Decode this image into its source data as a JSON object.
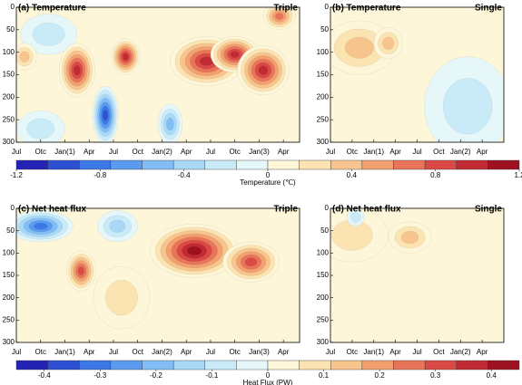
{
  "chart_data": [
    {
      "type": "contour",
      "title": "(a) Temperature",
      "label": "Triple",
      "xlim": [
        0,
        35
      ],
      "xticks": [
        {
          "value": 0,
          "label": "Jul"
        },
        {
          "value": 3,
          "label": "Otc"
        },
        {
          "value": 6,
          "label": "Jan(1)"
        },
        {
          "value": 9,
          "label": "Apr"
        },
        {
          "value": 12,
          "label": "Jul"
        },
        {
          "value": 15,
          "label": "Oct"
        },
        {
          "value": 18,
          "label": "Jan(2)"
        },
        {
          "value": 21,
          "label": "Apr"
        },
        {
          "value": 24,
          "label": "Jul"
        },
        {
          "value": 27,
          "label": "Otc"
        },
        {
          "value": 30,
          "label": "Jan(3)"
        },
        {
          "value": 33,
          "label": "Apr"
        }
      ],
      "ylim": [
        0,
        300
      ],
      "yticks": [
        0,
        50,
        100,
        150,
        200,
        250,
        300
      ],
      "y_inverted": true,
      "anomalies": [
        {
          "x": 4,
          "y": 60,
          "rx": 3.5,
          "ry": 45,
          "value": -0.2
        },
        {
          "x": 3,
          "y": 270,
          "rx": 3,
          "ry": 40,
          "value": -0.3
        },
        {
          "x": 11,
          "y": 240,
          "rx": 1.6,
          "ry": 65,
          "value": -0.9
        },
        {
          "x": 19,
          "y": 260,
          "rx": 1.5,
          "ry": 45,
          "value": -0.5
        },
        {
          "x": 1,
          "y": 110,
          "rx": 1.5,
          "ry": 30,
          "value": 0.3
        },
        {
          "x": 7.5,
          "y": 140,
          "rx": 2.2,
          "ry": 60,
          "value": 1.0
        },
        {
          "x": 13.5,
          "y": 110,
          "rx": 1.8,
          "ry": 40,
          "value": 0.9
        },
        {
          "x": 23.5,
          "y": 120,
          "rx": 4.5,
          "ry": 55,
          "value": 1.0
        },
        {
          "x": 27,
          "y": 105,
          "rx": 3,
          "ry": 40,
          "value": 0.9
        },
        {
          "x": 30.5,
          "y": 140,
          "rx": 3.2,
          "ry": 55,
          "value": 1.0
        },
        {
          "x": 32.5,
          "y": 20,
          "rx": 2,
          "ry": 30,
          "value": 0.7
        }
      ]
    },
    {
      "type": "contour",
      "title": "(b) Temperature",
      "label": "Single",
      "xlim": [
        0,
        24
      ],
      "xticks": [
        {
          "value": 0,
          "label": "Jul"
        },
        {
          "value": 3,
          "label": "Otc"
        },
        {
          "value": 6,
          "label": "Jan(1)"
        },
        {
          "value": 9,
          "label": "Apr"
        },
        {
          "value": 12,
          "label": "Jul"
        },
        {
          "value": 15,
          "label": "Oct"
        },
        {
          "value": 18,
          "label": "Jan(2)"
        },
        {
          "value": 21,
          "label": "Apr"
        }
      ],
      "ylim": [
        0,
        300
      ],
      "yticks": [
        0,
        50,
        100,
        150,
        200,
        250,
        300
      ],
      "y_inverted": true,
      "anomalies": [
        {
          "x": 19,
          "y": 220,
          "rx": 6,
          "ry": 110,
          "value": -0.2
        },
        {
          "x": 4,
          "y": 90,
          "rx": 5,
          "ry": 60,
          "value": 0.3
        },
        {
          "x": 8,
          "y": 80,
          "rx": 2,
          "ry": 35,
          "value": 0.35
        }
      ]
    },
    {
      "type": "colorbar",
      "title": "Temperature (℃)",
      "lim": [
        -1.2,
        1.2
      ],
      "ticks": [
        -1.2,
        -0.8,
        -0.4,
        0,
        0.4,
        0.8,
        1.2
      ],
      "colors": [
        "#2323b4",
        "#2d4fd2",
        "#3c78e6",
        "#5a9bf0",
        "#82bef5",
        "#a9d8f7",
        "#c9ebf8",
        "#e6f7fa",
        "#fdf6d8",
        "#fbe3b2",
        "#f7c48e",
        "#f2a070",
        "#e8755a",
        "#d94a46",
        "#c02a32",
        "#9c1220"
      ]
    },
    {
      "type": "contour",
      "title": "(c) Net heat flux",
      "label": "Triple",
      "xlim": [
        0,
        35
      ],
      "xticks": [
        {
          "value": 0,
          "label": "Jul"
        },
        {
          "value": 3,
          "label": "Otc"
        },
        {
          "value": 6,
          "label": "Jan(1)"
        },
        {
          "value": 9,
          "label": "Apr"
        },
        {
          "value": 12,
          "label": "Jul"
        },
        {
          "value": 15,
          "label": "Oct"
        },
        {
          "value": 18,
          "label": "Jan(2)"
        },
        {
          "value": 21,
          "label": "Apr"
        },
        {
          "value": 24,
          "label": "Jul"
        },
        {
          "value": 27,
          "label": "Otc"
        },
        {
          "value": 30,
          "label": "Jan(3)"
        },
        {
          "value": 33,
          "label": "Apr"
        }
      ],
      "ylim": [
        0,
        300
      ],
      "yticks": [
        0,
        50,
        100,
        150,
        200,
        250,
        300
      ],
      "y_inverted": true,
      "anomalies": [
        {
          "x": 3,
          "y": 40,
          "rx": 4,
          "ry": 35,
          "value": -0.3
        },
        {
          "x": 12.5,
          "y": 40,
          "rx": 2.5,
          "ry": 35,
          "value": -0.15
        },
        {
          "x": 13,
          "y": 200,
          "rx": 3.5,
          "ry": 70,
          "value": 0.1
        },
        {
          "x": 8,
          "y": 140,
          "rx": 1.8,
          "ry": 45,
          "value": 0.3
        },
        {
          "x": 22,
          "y": 95,
          "rx": 5.5,
          "ry": 60,
          "value": 0.45
        },
        {
          "x": 29,
          "y": 120,
          "rx": 3.5,
          "ry": 45,
          "value": 0.3
        }
      ]
    },
    {
      "type": "contour",
      "title": "(d) Net heat flux",
      "label": "Single",
      "xlim": [
        0,
        24
      ],
      "xticks": [
        {
          "value": 0,
          "label": "Jul"
        },
        {
          "value": 3,
          "label": "Otc"
        },
        {
          "value": 6,
          "label": "Jan(1)"
        },
        {
          "value": 9,
          "label": "Apr"
        },
        {
          "value": 12,
          "label": "Jul"
        },
        {
          "value": 15,
          "label": "Oct"
        },
        {
          "value": 18,
          "label": "Jan(2)"
        },
        {
          "value": 21,
          "label": "Apr"
        }
      ],
      "ylim": [
        0,
        300
      ],
      "yticks": [
        0,
        50,
        100,
        150,
        200,
        250,
        300
      ],
      "y_inverted": true,
      "anomalies": [
        {
          "x": 3,
          "y": 60,
          "rx": 5,
          "ry": 60,
          "value": 0.1
        },
        {
          "x": 3.5,
          "y": 20,
          "rx": 1.2,
          "ry": 20,
          "value": -0.1
        },
        {
          "x": 11,
          "y": 65,
          "rx": 3,
          "ry": 35,
          "value": 0.15
        }
      ]
    },
    {
      "type": "colorbar",
      "title": "Heat Flux (PW)",
      "lim": [
        -0.45,
        0.45
      ],
      "ticks": [
        -0.4,
        -0.3,
        -0.2,
        -0.1,
        0,
        0.1,
        0.2,
        0.3,
        0.4
      ],
      "colors": [
        "#2323b4",
        "#2d4fd2",
        "#3c78e6",
        "#5a9bf0",
        "#82bef5",
        "#a9d8f7",
        "#c9ebf8",
        "#e6f7fa",
        "#fdf6d8",
        "#fbe3b2",
        "#f7c48e",
        "#f2a070",
        "#e8755a",
        "#d94a46",
        "#c02a32",
        "#9c1220"
      ]
    }
  ]
}
